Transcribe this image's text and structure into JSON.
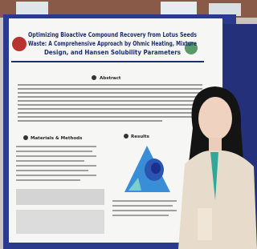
{
  "poster": {
    "title_lines": [
      "Optimizing Bioactive Compound Recovery from Lotus Seeds",
      "Waste: A Comprehensive Approach by Ohmic Heating, Mixture",
      "Design, and Hansen Solubility Parameters"
    ],
    "sections": [
      "Abstract",
      "Materials & Methods",
      "Results"
    ]
  }
}
